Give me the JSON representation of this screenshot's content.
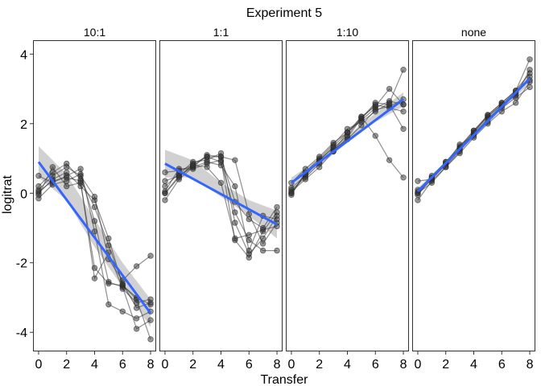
{
  "chart_data": {
    "type": "line",
    "title": "Experiment 5",
    "xlabel": "Transfer",
    "ylabel": "logitrat",
    "xlim": [
      -0.4,
      8.4
    ],
    "ylim": [
      -4.55,
      4.4
    ],
    "xticks": [
      0,
      2,
      4,
      6,
      8
    ],
    "yticks": [
      4,
      2,
      0,
      -2,
      -4
    ],
    "ytick_labels": [
      "4",
      "2",
      "0",
      "-2",
      "-4"
    ],
    "colors": {
      "fit_line": "#3366FF",
      "ribbon": "#BDBDBD",
      "points": "#333333",
      "panel_border": "#333333"
    },
    "panels": [
      {
        "label": "10:1",
        "fit": {
          "x": [
            0,
            8
          ],
          "y": [
            0.9,
            -3.45
          ]
        },
        "ribbon": {
          "x": [
            0,
            2,
            4,
            6,
            8
          ],
          "lower": [
            0.45,
            -0.2,
            -1.55,
            -2.7,
            -3.85
          ],
          "upper": [
            1.35,
            0.55,
            -0.75,
            -2.0,
            -3.05
          ]
        },
        "series": [
          {
            "values": [
              0.0,
              0.4,
              0.6,
              0.2,
              -0.2,
              -1.3,
              -2.65,
              -3.0,
              -3.2
            ]
          },
          {
            "values": [
              0.1,
              0.5,
              0.75,
              0.5,
              -0.1,
              -1.9,
              -2.5,
              -2.1,
              -1.8
            ]
          },
          {
            "values": [
              0.2,
              0.6,
              0.85,
              0.4,
              -0.4,
              -1.5,
              -2.6,
              -3.3,
              -3.15
            ]
          },
          {
            "values": [
              -0.15,
              0.25,
              0.35,
              0.55,
              -0.8,
              -2.55,
              -2.7,
              -3.9,
              -3.65
            ]
          },
          {
            "values": [
              0.5,
              0.3,
              0.5,
              0.7,
              -1.1,
              -3.2,
              -3.4,
              -3.6,
              -3.4
            ]
          },
          {
            "values": [
              -0.05,
              0.75,
              0.2,
              0.3,
              -2.15,
              -2.6,
              -2.65,
              -3.05,
              -4.2
            ]
          },
          {
            "values": [
              0.05,
              0.35,
              0.45,
              0.35,
              -2.45,
              -1.7,
              -2.75,
              -3.15,
              -3.05
            ]
          }
        ]
      },
      {
        "label": "1:1",
        "fit": {
          "x": [
            0,
            8
          ],
          "y": [
            0.85,
            -0.9
          ]
        },
        "ribbon": {
          "x": [
            0,
            2,
            4,
            6,
            8
          ],
          "lower": [
            0.45,
            0.45,
            -0.1,
            -0.65,
            -1.3
          ],
          "upper": [
            1.25,
            0.95,
            0.3,
            -0.2,
            -0.5
          ]
        },
        "series": [
          {
            "values": [
              0.0,
              0.5,
              0.8,
              1.05,
              1.05,
              0.95,
              -0.6,
              -1.45,
              -0.85
            ]
          },
          {
            "values": [
              -0.2,
              0.4,
              0.75,
              1.1,
              1.05,
              -0.25,
              -0.75,
              -1.0,
              -0.4
            ]
          },
          {
            "values": [
              0.2,
              0.55,
              0.9,
              0.95,
              1.15,
              -0.85,
              -1.75,
              -1.3,
              -0.65
            ]
          },
          {
            "values": [
              0.05,
              0.7,
              0.7,
              0.85,
              0.95,
              -1.35,
              -1.85,
              -1.1,
              -0.55
            ]
          },
          {
            "values": [
              0.35,
              0.5,
              0.75,
              0.9,
              0.8,
              0.2,
              -1.65,
              -0.65,
              -0.75
            ]
          },
          {
            "values": [
              0.0,
              0.45,
              0.85,
              1.05,
              0.9,
              -0.55,
              -1.35,
              -1.65,
              -1.65
            ]
          },
          {
            "values": [
              0.6,
              0.65,
              0.8,
              0.75,
              0.3,
              -1.3,
              -1.2,
              -1.05,
              -0.95
            ]
          }
        ]
      },
      {
        "label": "1:10",
        "fit": {
          "x": [
            0,
            8
          ],
          "y": [
            0.3,
            2.7
          ]
        },
        "ribbon": {
          "x": [
            0,
            2,
            4,
            6,
            8
          ],
          "lower": [
            0.15,
            0.8,
            1.45,
            2.05,
            2.5
          ],
          "upper": [
            0.45,
            1.0,
            1.65,
            2.3,
            2.9
          ]
        },
        "series": [
          {
            "values": [
              0.0,
              0.55,
              0.95,
              1.35,
              1.75,
              2.1,
              2.45,
              2.65,
              2.55
            ]
          },
          {
            "values": [
              0.1,
              0.45,
              0.85,
              1.25,
              1.55,
              1.95,
              2.4,
              2.5,
              2.7
            ]
          },
          {
            "values": [
              -0.05,
              0.6,
              1.0,
              1.4,
              1.85,
              2.05,
              2.35,
              2.6,
              3.55
            ]
          },
          {
            "values": [
              0.15,
              0.5,
              0.95,
              1.3,
              1.65,
              2.2,
              2.5,
              3.0,
              2.55
            ]
          },
          {
            "values": [
              0.3,
              0.7,
              1.05,
              1.45,
              1.75,
              2.15,
              2.55,
              2.45,
              2.35
            ]
          },
          {
            "values": [
              0.05,
              0.4,
              0.75,
              1.2,
              1.6,
              2.15,
              2.6,
              2.55,
              1.85
            ]
          },
          {
            "values": [
              0.0,
              0.55,
              0.9,
              1.2,
              1.75,
              2.2,
              1.65,
              0.95,
              0.45
            ]
          }
        ]
      },
      {
        "label": "none",
        "fit": {
          "x": [
            0,
            8
          ],
          "y": [
            0.05,
            3.3
          ]
        },
        "ribbon": {
          "x": [
            0,
            2,
            4,
            6,
            8
          ],
          "lower": [
            -0.05,
            0.75,
            1.6,
            2.4,
            3.15
          ],
          "upper": [
            0.15,
            0.9,
            1.75,
            2.55,
            3.45
          ]
        },
        "series": [
          {
            "values": [
              0.0,
              0.4,
              0.85,
              1.3,
              1.75,
              2.2,
              2.55,
              2.9,
              3.25
            ]
          },
          {
            "values": [
              0.1,
              0.45,
              0.8,
              1.25,
              1.7,
              2.15,
              2.5,
              2.85,
              3.35
            ]
          },
          {
            "values": [
              -0.2,
              0.35,
              0.75,
              1.2,
              1.75,
              2.25,
              2.6,
              2.95,
              3.45
            ]
          },
          {
            "values": [
              0.05,
              0.5,
              0.9,
              1.35,
              1.8,
              2.2,
              2.55,
              2.8,
              3.55
            ]
          },
          {
            "values": [
              0.35,
              0.4,
              0.85,
              1.4,
              1.65,
              2.05,
              2.45,
              2.75,
              3.05
            ]
          },
          {
            "values": [
              0.0,
              0.3,
              0.75,
              1.15,
              1.6,
              2.0,
              2.35,
              2.6,
              3.2
            ]
          },
          {
            "values": [
              -0.05,
              0.45,
              0.9,
              1.3,
              1.8,
              2.25,
              2.6,
              2.95,
              3.85
            ]
          }
        ]
      }
    ]
  }
}
